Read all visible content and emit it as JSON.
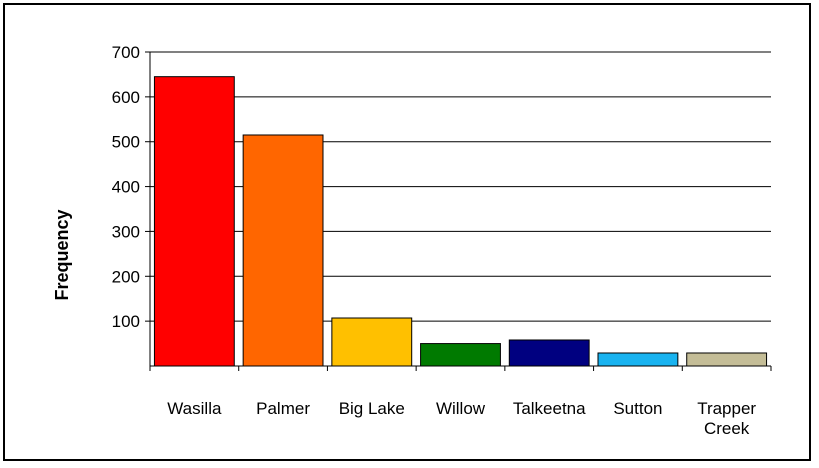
{
  "chart_data": {
    "type": "bar",
    "title": "",
    "xlabel": "",
    "ylabel": "Frequency",
    "ylim": [
      0,
      700
    ],
    "yticks": [
      100,
      200,
      300,
      400,
      500,
      600,
      700
    ],
    "grid": true,
    "legend": "none",
    "categories": [
      {
        "lines": [
          "Wasilla"
        ]
      },
      {
        "lines": [
          "Palmer"
        ]
      },
      {
        "lines": [
          "Big Lake"
        ]
      },
      {
        "lines": [
          "Willow"
        ]
      },
      {
        "lines": [
          "Talkeetna"
        ]
      },
      {
        "lines": [
          "Sutton"
        ]
      },
      {
        "lines": [
          "Trapper",
          "Creek"
        ]
      }
    ],
    "values": [
      645,
      515,
      107,
      50,
      58,
      29,
      29
    ],
    "colors": [
      "#ff0000",
      "#ff6600",
      "#ffc000",
      "#007a00",
      "#000080",
      "#19b3f0",
      "#c4bd97"
    ]
  }
}
